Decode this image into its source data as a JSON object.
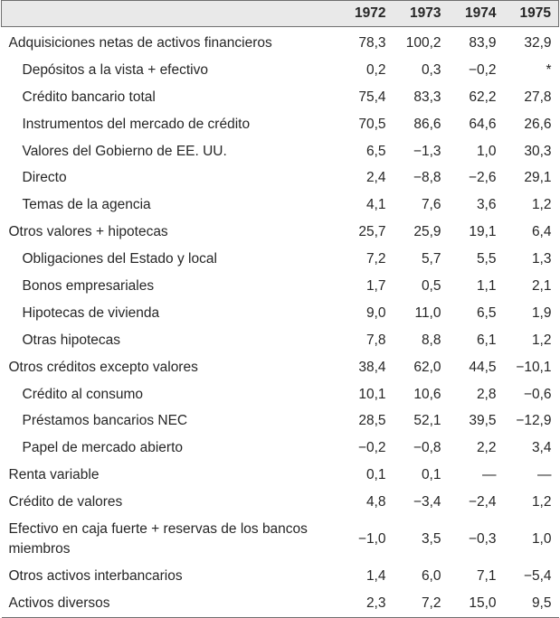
{
  "columns": [
    "",
    "1972",
    "1973",
    "1974",
    "1975"
  ],
  "rows": [
    {
      "label": "Adquisiciones netas de activos financieros",
      "indent": false,
      "values": [
        "78,3",
        "100,2",
        "83,9",
        "32,9"
      ]
    },
    {
      "label": "Depósitos a la vista + efectivo",
      "indent": true,
      "values": [
        "0,2",
        "0,3",
        "−0,2",
        "*"
      ]
    },
    {
      "label": "Crédito bancario total",
      "indent": true,
      "values": [
        "75,4",
        "83,3",
        "62,2",
        "27,8"
      ]
    },
    {
      "label": "Instrumentos del mercado de crédito",
      "indent": true,
      "values": [
        "70,5",
        "86,6",
        "64,6",
        "26,6"
      ]
    },
    {
      "label": "Valores del Gobierno de EE. UU.",
      "indent": true,
      "values": [
        "6,5",
        "−1,3",
        "1,0",
        "30,3"
      ]
    },
    {
      "label": "Directo",
      "indent": true,
      "values": [
        "2,4",
        "−8,8",
        "−2,6",
        "29,1"
      ]
    },
    {
      "label": "Temas de la agencia",
      "indent": true,
      "values": [
        "4,1",
        "7,6",
        "3,6",
        "1,2"
      ]
    },
    {
      "label": "Otros valores + hipotecas",
      "indent": false,
      "values": [
        "25,7",
        "25,9",
        "19,1",
        "6,4"
      ]
    },
    {
      "label": "Obligaciones del Estado y local",
      "indent": true,
      "values": [
        "7,2",
        "5,7",
        "5,5",
        "1,3"
      ]
    },
    {
      "label": "Bonos empresariales",
      "indent": true,
      "values": [
        "1,7",
        "0,5",
        "1,1",
        "2,1"
      ]
    },
    {
      "label": "Hipotecas de vivienda",
      "indent": true,
      "values": [
        "9,0",
        "11,0",
        "6,5",
        "1,9"
      ]
    },
    {
      "label": "Otras hipotecas",
      "indent": true,
      "values": [
        "7,8",
        "8,8",
        "6,1",
        "1,2"
      ]
    },
    {
      "label": "Otros créditos excepto valores",
      "indent": false,
      "values": [
        "38,4",
        "62,0",
        "44,5",
        "−10,1"
      ]
    },
    {
      "label": "Crédito al consumo",
      "indent": true,
      "values": [
        "10,1",
        "10,6",
        "2,8",
        "−0,6"
      ]
    },
    {
      "label": "Préstamos bancarios NEC",
      "indent": true,
      "values": [
        "28,5",
        "52,1",
        "39,5",
        "−12,9"
      ]
    },
    {
      "label": "Papel de mercado abierto",
      "indent": true,
      "values": [
        "−0,2",
        "−0,8",
        "2,2",
        "3,4"
      ]
    },
    {
      "label": "Renta variable",
      "indent": false,
      "values": [
        "0,1",
        "0,1",
        "—",
        "—"
      ]
    },
    {
      "label": "Crédito de valores",
      "indent": false,
      "values": [
        "4,8",
        "−3,4",
        "−2,4",
        "1,2"
      ]
    },
    {
      "label": "Efectivo en caja fuerte + reservas de los bancos miembros",
      "indent": false,
      "values": [
        "−1,0",
        "3,5",
        "−0,3",
        "1,0"
      ]
    },
    {
      "label": "Otros activos interbancarios",
      "indent": false,
      "values": [
        "1,4",
        "6,0",
        "7,1",
        "−5,4"
      ]
    },
    {
      "label": "Activos diversos",
      "indent": false,
      "values": [
        "2,3",
        "7,2",
        "15,0",
        "9,5"
      ]
    }
  ]
}
